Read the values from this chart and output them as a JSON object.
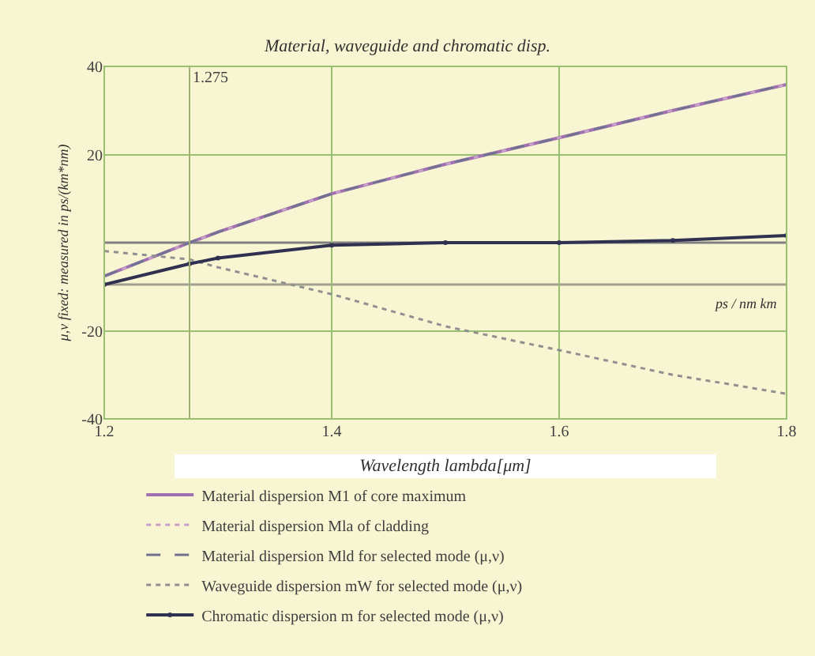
{
  "chart_data": {
    "type": "line",
    "title": "Material, waveguide and chromatic disp.",
    "xlabel": "Wavelength lambda[μm]",
    "ylabel": "μ,ν fixed: measured in ps/(km*nm)",
    "xlim": [
      1.2,
      1.8
    ],
    "xticks": [
      1.2,
      1.4,
      1.6,
      1.8
    ],
    "ylim": [
      -40,
      40
    ],
    "yticks": [
      -40,
      -20,
      20,
      40
    ],
    "grid": true,
    "legend": "bottom",
    "annotations": [
      "ps / nm km"
    ],
    "ref_lines": [
      {
        "axis": "y",
        "value": 0,
        "label": null,
        "color": "#808080"
      },
      {
        "axis": "y",
        "value": -9.5,
        "label": null,
        "color": "#a0a090"
      },
      {
        "axis": "x",
        "value": 1.275,
        "label": "1.275",
        "color": "#a0b070"
      }
    ],
    "x": [
      1.2,
      1.275,
      1.3,
      1.4,
      1.5,
      1.6,
      1.7,
      1.8
    ],
    "series": [
      {
        "name": "Material dispersion M1 of core maximum",
        "color": "#a070b0",
        "line_style": "solid",
        "values": [
          -7.6,
          0,
          2.4,
          11.1,
          17.8,
          23.8,
          30,
          35.9
        ]
      },
      {
        "name": "Material dispersion Mla of cladding",
        "color": "#c8a0c8",
        "line_style": "dotted",
        "values": [
          -7.6,
          0,
          2.4,
          11.1,
          17.8,
          23.8,
          30,
          35.9
        ]
      },
      {
        "name": "Material dispersion Mld for selected mode (μ,ν)",
        "color": "#707090",
        "line_style": "dashed",
        "values": [
          -7.6,
          0,
          2.4,
          11.1,
          17.8,
          23.8,
          30,
          35.9
        ]
      },
      {
        "name": "Waveguide dispersion mW for selected mode (μ,ν)",
        "color": "#909090",
        "line_style": "dotted",
        "values": [
          -1.9,
          -3.8,
          -5.6,
          -11.7,
          -19,
          -24.4,
          -30,
          -34.3
        ]
      },
      {
        "name": "Chromatic dispersion m for selected mode (μ,ν)",
        "color": "#303050",
        "line_style": "solid",
        "marker": "circle",
        "values": [
          -9.5,
          -4.8,
          -3.5,
          -0.6,
          0,
          0,
          0.5,
          1.6
        ]
      }
    ]
  }
}
